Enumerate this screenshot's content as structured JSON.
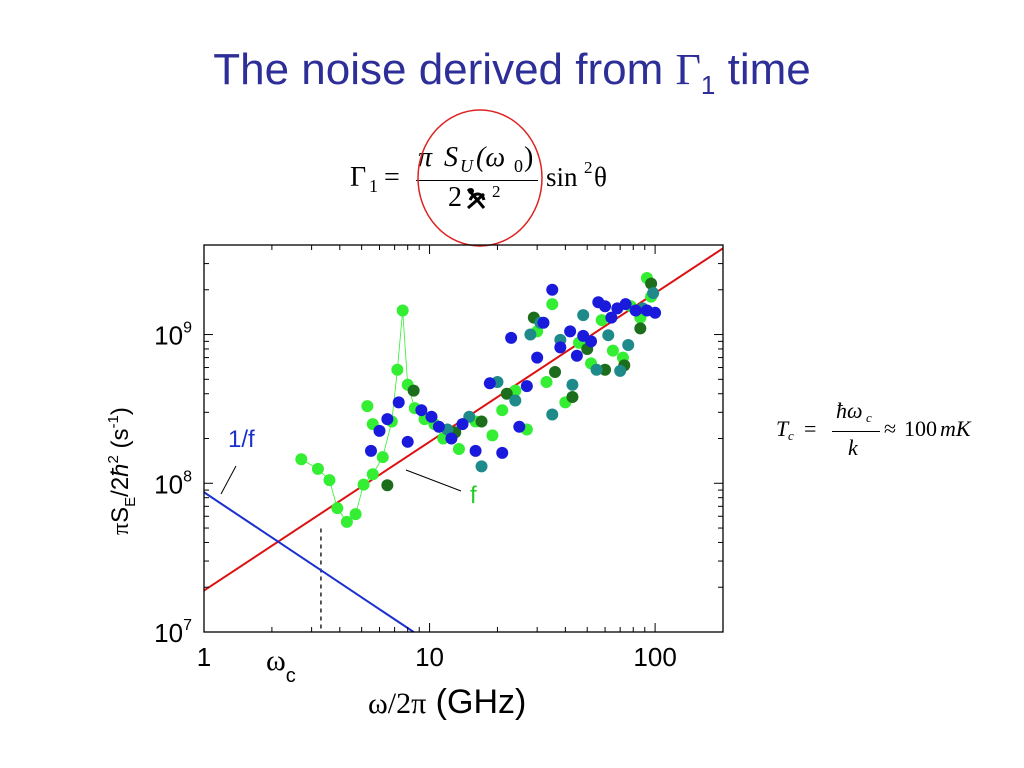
{
  "slide": {
    "title_prefix": "The noise derived from ",
    "title_gamma": "Γ",
    "title_sub": "1",
    "title_suffix": " time"
  },
  "formula": {
    "lhs": "Γ",
    "lhs_sub": "1",
    "eq": "=",
    "num_pi": "π",
    "num_S": "S",
    "num_sub": "U",
    "num_arg": "(ω",
    "num_arg_sub": "0",
    "num_close": ")",
    "den_2": "2",
    "den_exp": "2",
    "trail": "sin",
    "trail_exp": "2",
    "trail_theta": "θ"
  },
  "tc_formula": {
    "lhs": "T",
    "lhs_sub": "c",
    "eq": "=",
    "num": "ħω",
    "num_sub": "c",
    "den": "k",
    "approx": "≈",
    "value": "100",
    "unit": "mK"
  },
  "colors": {
    "title": "#2e2e98",
    "fit_line": "#dd1111",
    "one_over_f_line": "#1a2fd0",
    "label_blue": "#1a2fd0",
    "label_green": "#22cc22",
    "series_light_green": "#33ee33",
    "series_dark_green": "#1c6e1c",
    "series_teal": "#1f8a8a",
    "series_blue": "#1a1add",
    "circle": "#dd2222"
  },
  "chart_data": {
    "type": "scatter",
    "x_scale": "log",
    "y_scale": "log",
    "xlim": [
      1,
      200
    ],
    "ylim": [
      10000000,
      4000000000
    ],
    "x_ticks": [
      {
        "value": 1,
        "label": "1"
      },
      {
        "value": 10,
        "label": "10"
      },
      {
        "value": 100,
        "label": "100"
      }
    ],
    "y_ticks": [
      {
        "value": 10000000,
        "base": "10",
        "exp": "7"
      },
      {
        "value": 100000000,
        "base": "10",
        "exp": "8"
      },
      {
        "value": 1000000000,
        "base": "10",
        "exp": "9"
      }
    ],
    "xlabel": {
      "omega": "ω/2π",
      "unit": " (GHz)"
    },
    "ylabel": {
      "pi": "π",
      "S": "S",
      "sub": "E",
      "mid": "/2",
      "hbar": "ħ",
      "sup": "2",
      "unit": " (s",
      "unit_exp": "-1",
      "close": ")"
    },
    "omega_c": {
      "x": 3.3,
      "y": 40000000,
      "label": "ω",
      "sub": "c"
    },
    "lines": [
      {
        "id": "fit",
        "label": "f",
        "points": [
          [
            1,
            19000000
          ],
          [
            200,
            3800000000
          ]
        ]
      },
      {
        "id": "one_over_f",
        "label": "1/f",
        "points": [
          [
            1,
            87000000
          ],
          [
            8.5,
            10000000
          ]
        ]
      }
    ],
    "series": [
      {
        "id": "light_green",
        "connected": true,
        "points": [
          [
            2.7,
            145000000
          ],
          [
            3.2,
            125000000
          ],
          [
            3.6,
            105000000
          ],
          [
            3.9,
            68000000
          ],
          [
            4.3,
            55000000
          ],
          [
            4.7,
            62000000
          ],
          [
            5.1,
            98000000
          ],
          [
            5.6,
            115000000
          ],
          [
            6.2,
            150000000
          ],
          [
            6.8,
            260000000
          ],
          [
            7.2,
            580000000
          ],
          [
            7.6,
            1450000000
          ],
          [
            8.0,
            460000000
          ],
          [
            8.6,
            320000000
          ],
          [
            9.5,
            270000000
          ],
          [
            10.5,
            250000000
          ],
          [
            11.5,
            200000000
          ],
          [
            5.3,
            330000000
          ],
          [
            5.6,
            250000000
          ],
          [
            13.5,
            170000000
          ],
          [
            16,
            260000000
          ],
          [
            19,
            210000000
          ],
          [
            21,
            310000000
          ],
          [
            24,
            420000000
          ],
          [
            27,
            230000000
          ],
          [
            30,
            1050000000
          ],
          [
            33,
            480000000
          ],
          [
            35,
            1600000000
          ],
          [
            40,
            350000000
          ],
          [
            46,
            880000000
          ],
          [
            52,
            640000000
          ],
          [
            58,
            1250000000
          ],
          [
            65,
            780000000
          ],
          [
            72,
            700000000
          ],
          [
            78,
            1550000000
          ],
          [
            86,
            1300000000
          ],
          [
            92,
            2400000000
          ],
          [
            96,
            1800000000
          ]
        ]
      },
      {
        "id": "dark_green",
        "connected": false,
        "points": [
          [
            6.5,
            97000000
          ],
          [
            8.5,
            420000000
          ],
          [
            13,
            220000000
          ],
          [
            17,
            260000000
          ],
          [
            22,
            400000000
          ],
          [
            29,
            1300000000
          ],
          [
            36,
            560000000
          ],
          [
            43,
            380000000
          ],
          [
            50,
            800000000
          ],
          [
            60,
            580000000
          ],
          [
            73,
            620000000
          ],
          [
            86,
            1100000000
          ],
          [
            96,
            2200000000
          ]
        ]
      },
      {
        "id": "teal",
        "connected": false,
        "points": [
          [
            12,
            230000000
          ],
          [
            15,
            280000000
          ],
          [
            17,
            130000000
          ],
          [
            20,
            480000000
          ],
          [
            24,
            360000000
          ],
          [
            28,
            1000000000
          ],
          [
            31,
            1200000000
          ],
          [
            35,
            290000000
          ],
          [
            38,
            920000000
          ],
          [
            43,
            460000000
          ],
          [
            48,
            1350000000
          ],
          [
            55,
            580000000
          ],
          [
            62,
            990000000
          ],
          [
            70,
            570000000
          ],
          [
            76,
            850000000
          ],
          [
            88,
            1500000000
          ],
          [
            98,
            1900000000
          ]
        ]
      },
      {
        "id": "blue",
        "connected": false,
        "points": [
          [
            5.5,
            165000000
          ],
          [
            6,
            225000000
          ],
          [
            6.5,
            270000000
          ],
          [
            7.3,
            350000000
          ],
          [
            8,
            190000000
          ],
          [
            9.2,
            310000000
          ],
          [
            10.2,
            280000000
          ],
          [
            11,
            240000000
          ],
          [
            12.5,
            200000000
          ],
          [
            14,
            250000000
          ],
          [
            16,
            165000000
          ],
          [
            18.5,
            470000000
          ],
          [
            21,
            160000000
          ],
          [
            23,
            950000000
          ],
          [
            25,
            240000000
          ],
          [
            27,
            450000000
          ],
          [
            30,
            700000000
          ],
          [
            32,
            1200000000
          ],
          [
            35,
            2000000000
          ],
          [
            38,
            820000000
          ],
          [
            42,
            1050000000
          ],
          [
            45,
            720000000
          ],
          [
            48,
            980000000
          ],
          [
            52,
            900000000
          ],
          [
            56,
            1650000000
          ],
          [
            60,
            1550000000
          ],
          [
            64,
            1300000000
          ],
          [
            68,
            1500000000
          ],
          [
            74,
            1600000000
          ],
          [
            82,
            1450000000
          ],
          [
            92,
            1450000000
          ],
          [
            100,
            1400000000
          ]
        ]
      }
    ]
  }
}
